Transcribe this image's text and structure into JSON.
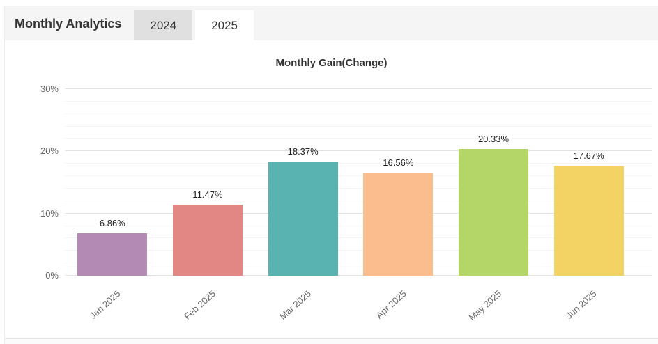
{
  "header": {
    "title": "Monthly Analytics",
    "tabs": [
      {
        "label": "2024",
        "active": false
      },
      {
        "label": "2025",
        "active": true
      }
    ]
  },
  "colors": {
    "header_bg": "#f5f5f5",
    "inactive_tab_bg": "#e0e0e0",
    "active_tab_bg": "#ffffff",
    "grid_major": "#e2e2e2",
    "grid_minor": "#f4f4f4",
    "axis_text": "#666666",
    "title_text": "#333333",
    "value_label_text": "#222222"
  },
  "chart_data": {
    "type": "bar",
    "title": "Monthly Gain(Change)",
    "categories": [
      "Jan 2025",
      "Feb 2025",
      "Mar 2025",
      "Apr 2025",
      "May 2025",
      "Jun 2025"
    ],
    "values": [
      6.86,
      11.47,
      18.37,
      16.56,
      20.33,
      17.67
    ],
    "labels": [
      "6.86%",
      "11.47%",
      "18.37%",
      "16.56%",
      "20.33%",
      "17.67%"
    ],
    "bar_colors": [
      "#b28ab4",
      "#e28783",
      "#58b3b1",
      "#fcbd8e",
      "#b4d568",
      "#f3d364"
    ],
    "xlabel": "",
    "ylabel": "",
    "ylim": [
      0,
      30
    ],
    "yticks": [
      0,
      10,
      20,
      30
    ],
    "ytick_labels": [
      "0%",
      "10%",
      "20%",
      "30%"
    ],
    "minor_grid_step": 2,
    "grid": true,
    "legend": "none"
  }
}
